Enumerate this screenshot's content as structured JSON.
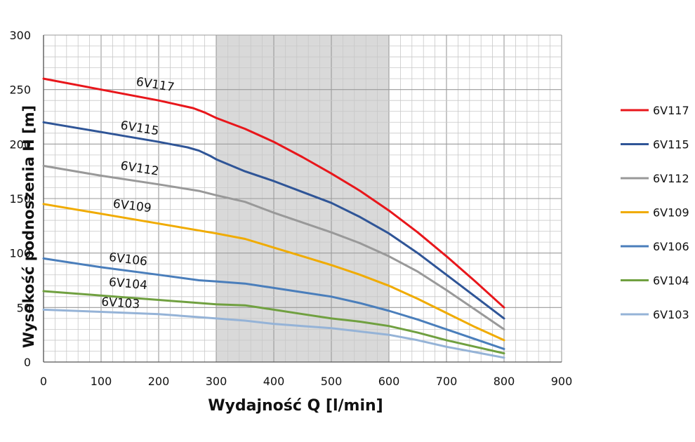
{
  "chart_data": {
    "type": "line",
    "xlabel": "Wydajność Q [l/min]",
    "ylabel": "Wysokość podnoszenia H [m]",
    "xlim": [
      0,
      900
    ],
    "ylim": [
      0,
      300
    ],
    "xticks": [
      0,
      100,
      200,
      300,
      400,
      500,
      600,
      700,
      800,
      900
    ],
    "yticks": [
      0,
      50,
      100,
      150,
      200,
      250,
      300
    ],
    "grid": true,
    "highlight_range": [
      300,
      600
    ],
    "legend_position": "right",
    "series": [
      {
        "name": "6V117",
        "color": "#e8161b",
        "x": [
          0,
          100,
          200,
          260,
          280,
          300,
          350,
          400,
          450,
          500,
          550,
          600,
          650,
          700,
          750,
          800
        ],
        "y": [
          260,
          250,
          240,
          233,
          229,
          224,
          214,
          202,
          188,
          173,
          157,
          139,
          119,
          97,
          74,
          50
        ]
      },
      {
        "name": "6V115",
        "color": "#2f5597",
        "x": [
          0,
          100,
          200,
          250,
          270,
          290,
          300,
          350,
          400,
          450,
          500,
          550,
          600,
          650,
          700,
          750,
          800
        ],
        "y": [
          220,
          211,
          202,
          197,
          194,
          189,
          186,
          175,
          166,
          156,
          146,
          133,
          118,
          100,
          80,
          60,
          40
        ]
      },
      {
        "name": "6V112",
        "color": "#999999",
        "x": [
          0,
          100,
          200,
          270,
          300,
          350,
          400,
          450,
          500,
          550,
          600,
          650,
          700,
          750,
          800
        ],
        "y": [
          180,
          171,
          163,
          157,
          153,
          147,
          137,
          128,
          119,
          109,
          97,
          83,
          66,
          48,
          30
        ]
      },
      {
        "name": "6V109",
        "color": "#f0ab00",
        "x": [
          0,
          100,
          200,
          300,
          350,
          400,
          450,
          500,
          550,
          600,
          650,
          700,
          750,
          800
        ],
        "y": [
          145,
          136,
          127,
          118,
          113,
          105,
          97,
          89,
          80,
          70,
          58,
          45,
          32,
          20
        ]
      },
      {
        "name": "6V106",
        "color": "#4a7ebb",
        "x": [
          0,
          100,
          200,
          270,
          300,
          350,
          400,
          450,
          500,
          550,
          600,
          650,
          700,
          750,
          800
        ],
        "y": [
          95,
          87,
          80,
          75,
          74,
          72,
          68,
          64,
          60,
          54,
          47,
          39,
          30,
          21,
          12
        ]
      },
      {
        "name": "6V104",
        "color": "#70a040",
        "x": [
          0,
          100,
          200,
          300,
          350,
          400,
          450,
          500,
          550,
          600,
          650,
          700,
          750,
          800
        ],
        "y": [
          65,
          61,
          57,
          53,
          52,
          48,
          44,
          40,
          37,
          33,
          27,
          20,
          14,
          8
        ]
      },
      {
        "name": "6V103",
        "color": "#95b3d7",
        "x": [
          0,
          100,
          200,
          300,
          350,
          400,
          450,
          500,
          550,
          600,
          650,
          700,
          750,
          800
        ],
        "y": [
          48,
          46,
          44,
          40,
          38,
          35,
          33,
          31,
          28,
          25,
          20,
          14,
          9,
          4
        ]
      }
    ],
    "curve_labels": [
      {
        "text": "6V117",
        "x": 160,
        "y": 250,
        "angle": 9
      },
      {
        "text": "6V115",
        "x": 133,
        "y": 210,
        "angle": 9
      },
      {
        "text": "6V112",
        "x": 133,
        "y": 173,
        "angle": 9
      },
      {
        "text": "6V109",
        "x": 120,
        "y": 138,
        "angle": 7
      },
      {
        "text": "6V106",
        "x": 113,
        "y": 89,
        "angle": 7
      },
      {
        "text": "6V104",
        "x": 113,
        "y": 66,
        "angle": 5
      },
      {
        "text": "6V103",
        "x": 100,
        "y": 48,
        "angle": 4
      }
    ]
  }
}
